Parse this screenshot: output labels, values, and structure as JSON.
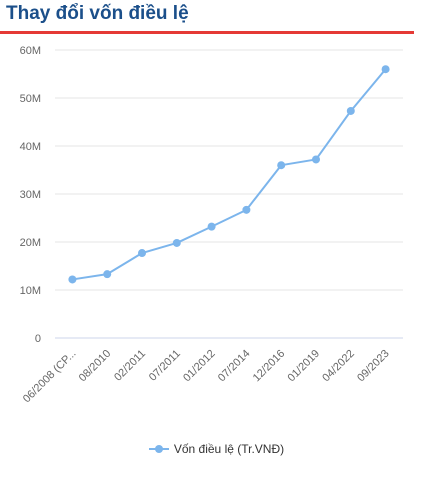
{
  "header": {
    "title": "Thay đổi vốn điều lệ"
  },
  "colors": {
    "series": "#7cb5ec",
    "accent": "#e53935",
    "title": "#1b4f8a",
    "grid": "#e6e6e6",
    "axis_text": "#666666"
  },
  "chart_data": {
    "type": "line",
    "categories": [
      "06/2008 (CP...",
      "08/2010",
      "02/2011",
      "07/2011",
      "01/2012",
      "07/2014",
      "12/2016",
      "01/2019",
      "04/2022",
      "09/2023"
    ],
    "series": [
      {
        "name": "Vốn điều lệ (Tr.VNĐ)",
        "values": [
          12.2,
          13.3,
          17.7,
          19.8,
          23.2,
          26.7,
          36.0,
          37.2,
          47.3,
          56.0
        ]
      }
    ],
    "y_tick_labels": [
      "0",
      "10M",
      "20M",
      "30M",
      "40M",
      "50M",
      "60M"
    ],
    "ylim": [
      0,
      60
    ],
    "grid": true,
    "legend_position": "bottom-center"
  }
}
